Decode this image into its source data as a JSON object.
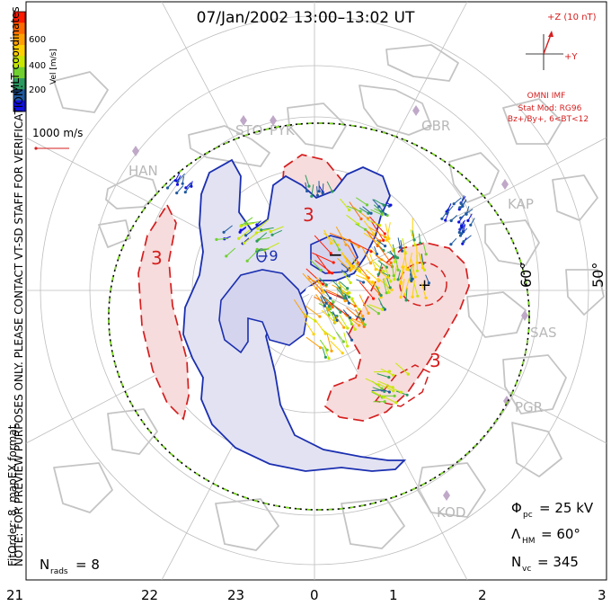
{
  "title": "07/Jan/2002 13:00–13:02 UT",
  "side_note": {
    "line1": "NOTE: FOR PREVIEW PURPOSES ONLY. PLEASE CONTACT VT-SD STAFF FOR VERIFICATION.",
    "line2": "FitOrder: 8, mapEX format"
  },
  "coords_label": "MLT coordinates",
  "colorbar": {
    "title": "Vel [m/s]",
    "ticks": [
      "600",
      "400",
      "200"
    ],
    "colors": [
      "#ff1a00",
      "#ff6a00",
      "#ffa000",
      "#ffd000",
      "#c8e800",
      "#70d030",
      "#2a9a60",
      "#205aa0",
      "#1010e0"
    ]
  },
  "ref_vector_label": "1000 m/s",
  "imf": {
    "z_label": "+Z (10 nT)",
    "y_label": "+Y",
    "source": "OMNI IMF",
    "stat_mod": "Stat Mod: RG96",
    "condition": "Bz+/By+, 6<BT<12"
  },
  "stations": [
    {
      "code": "STO"
    },
    {
      "code": "PYK"
    },
    {
      "code": "GBR"
    },
    {
      "code": "HAN"
    },
    {
      "code": "KAP"
    },
    {
      "code": "SAS"
    },
    {
      "code": "PGR"
    },
    {
      "code": "KOD"
    }
  ],
  "lat_labels": [
    "60°",
    "50°"
  ],
  "contour_labels": {
    "negative": [
      "−9",
      "−"
    ],
    "positive": [
      "3",
      "3",
      "3",
      "+"
    ]
  },
  "stats": {
    "phi_pc": {
      "sym": "Φ",
      "sub": "pc",
      "value": "= 25 kV"
    },
    "lambda_hm": {
      "sym": "Λ",
      "sub": "HM",
      "value": "= 60°"
    },
    "n_vc": {
      "sym": "N",
      "sub": "vc",
      "value": "= 345"
    },
    "n_rads": {
      "sym": "N",
      "sub": "rads",
      "value": "= 8"
    }
  },
  "mlt_ticks": [
    "21",
    "22",
    "23",
    "0",
    "1",
    "2",
    "3"
  ],
  "colors": {
    "neg_fill": "#e2e2f2",
    "neg_line": "#1b2fb0",
    "pos_fill": "#f6dcdc",
    "pos_line": "#d61e1e",
    "map_line": "#c0c0c0",
    "boundary_green": "#7ee020"
  }
}
